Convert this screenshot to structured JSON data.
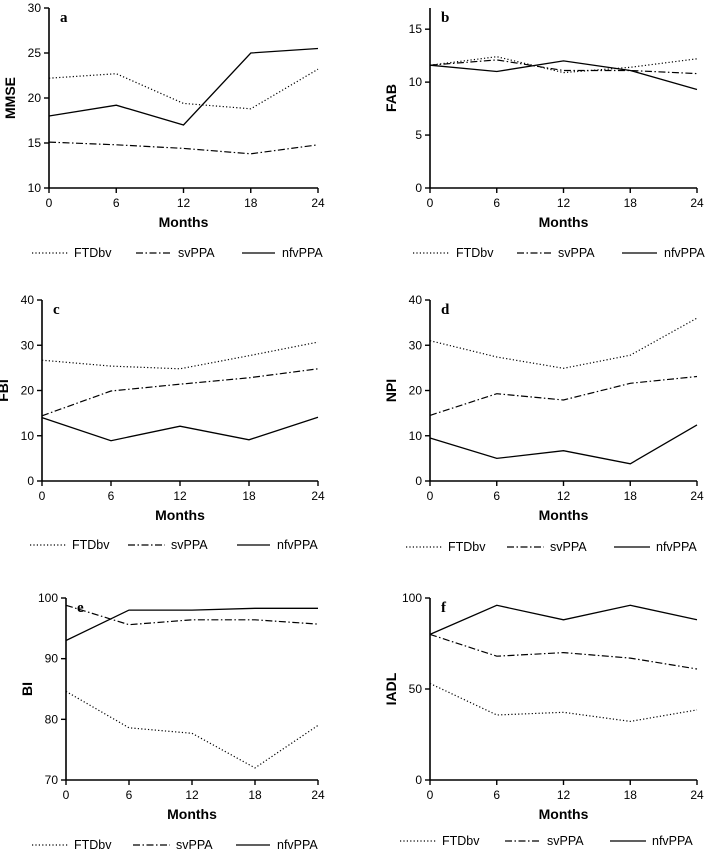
{
  "legend": {
    "ftd_label": "FTDbv",
    "sv_label": "svPPA",
    "nfv_label": "nfvPPA"
  },
  "series_style": {
    "FTDbv": "dotted",
    "svPPA": "dashdot",
    "nfvPPA": "solid",
    "line_color": "#000000"
  },
  "chart_data": [
    {
      "id": "a",
      "type": "line",
      "panel_label": "a",
      "xlabel": "Months",
      "ylabel": "MMSE",
      "x": [
        0,
        6,
        12,
        18,
        24
      ],
      "xlim": [
        0,
        24
      ],
      "ylim": [
        10,
        30
      ],
      "yticks": [
        10,
        15,
        20,
        25,
        30
      ],
      "series": [
        {
          "name": "FTDbv",
          "values": [
            22.2,
            22.7,
            19.4,
            18.8,
            23.2
          ]
        },
        {
          "name": "svPPA",
          "values": [
            15.1,
            14.8,
            14.4,
            13.8,
            14.8
          ]
        },
        {
          "name": "nfvPPA",
          "values": [
            18.0,
            19.2,
            17.0,
            25.0,
            25.5
          ]
        }
      ]
    },
    {
      "id": "b",
      "type": "line",
      "panel_label": "b",
      "xlabel": "Months",
      "ylabel": "FAB",
      "x": [
        0,
        6,
        12,
        18,
        24
      ],
      "xlim": [
        0,
        24
      ],
      "ylim": [
        0,
        17
      ],
      "yticks": [
        0,
        5,
        10,
        15
      ],
      "series": [
        {
          "name": "FTDbv",
          "values": [
            11.6,
            12.4,
            10.9,
            11.4,
            12.2
          ]
        },
        {
          "name": "svPPA",
          "values": [
            11.6,
            12.1,
            11.1,
            11.1,
            10.8
          ]
        },
        {
          "name": "nfvPPA",
          "values": [
            11.6,
            11.0,
            12.0,
            11.1,
            9.3
          ]
        }
      ]
    },
    {
      "id": "c",
      "type": "line",
      "panel_label": "c",
      "xlabel": "Months",
      "ylabel": "FBI",
      "x": [
        0,
        6,
        12,
        18,
        24
      ],
      "xlim": [
        0,
        24
      ],
      "ylim": [
        0,
        40
      ],
      "yticks": [
        0,
        10,
        20,
        30,
        40
      ],
      "series": [
        {
          "name": "FTDbv",
          "values": [
            26.7,
            25.4,
            24.8,
            27.7,
            30.7
          ]
        },
        {
          "name": "svPPA",
          "values": [
            14.4,
            19.9,
            21.4,
            22.8,
            24.8
          ]
        },
        {
          "name": "nfvPPA",
          "values": [
            14.0,
            8.9,
            12.1,
            9.1,
            14.1
          ]
        }
      ]
    },
    {
      "id": "d",
      "type": "line",
      "panel_label": "d",
      "xlabel": "Months",
      "ylabel": "NPI",
      "x": [
        0,
        6,
        12,
        18,
        24
      ],
      "xlim": [
        0,
        24
      ],
      "ylim": [
        0,
        40
      ],
      "yticks": [
        0,
        10,
        20,
        30,
        40
      ],
      "series": [
        {
          "name": "FTDbv",
          "values": [
            31.0,
            27.4,
            24.9,
            27.8,
            36.0
          ]
        },
        {
          "name": "svPPA",
          "values": [
            14.5,
            19.3,
            17.9,
            21.6,
            23.1
          ]
        },
        {
          "name": "nfvPPA",
          "values": [
            9.5,
            5.0,
            6.7,
            3.8,
            12.4
          ]
        }
      ]
    },
    {
      "id": "e",
      "type": "line",
      "panel_label": "e",
      "xlabel": "Months",
      "ylabel": "BI",
      "x": [
        0,
        6,
        12,
        18,
        24
      ],
      "xlim": [
        0,
        24
      ],
      "ylim": [
        70,
        100
      ],
      "yticks": [
        70,
        80,
        90,
        100
      ],
      "series": [
        {
          "name": "FTDbv",
          "values": [
            84.6,
            78.6,
            77.7,
            72.0,
            79.0
          ]
        },
        {
          "name": "svPPA",
          "values": [
            98.8,
            95.6,
            96.4,
            96.4,
            95.7
          ]
        },
        {
          "name": "nfvPPA",
          "values": [
            93.0,
            98.0,
            98.0,
            98.3,
            98.3
          ]
        }
      ]
    },
    {
      "id": "f",
      "type": "line",
      "panel_label": "f",
      "xlabel": "Months",
      "ylabel": "IADL",
      "x": [
        0,
        6,
        12,
        18,
        24
      ],
      "xlim": [
        0,
        24
      ],
      "ylim": [
        0,
        100
      ],
      "yticks": [
        0,
        50,
        100
      ],
      "series": [
        {
          "name": "FTDbv",
          "values": [
            53.0,
            35.7,
            37.2,
            32.2,
            38.5
          ]
        },
        {
          "name": "svPPA",
          "values": [
            80.0,
            68.0,
            70.0,
            67.0,
            61.0
          ]
        },
        {
          "name": "nfvPPA",
          "values": [
            80.0,
            96.0,
            88.0,
            96.0,
            88.0
          ]
        }
      ]
    }
  ]
}
